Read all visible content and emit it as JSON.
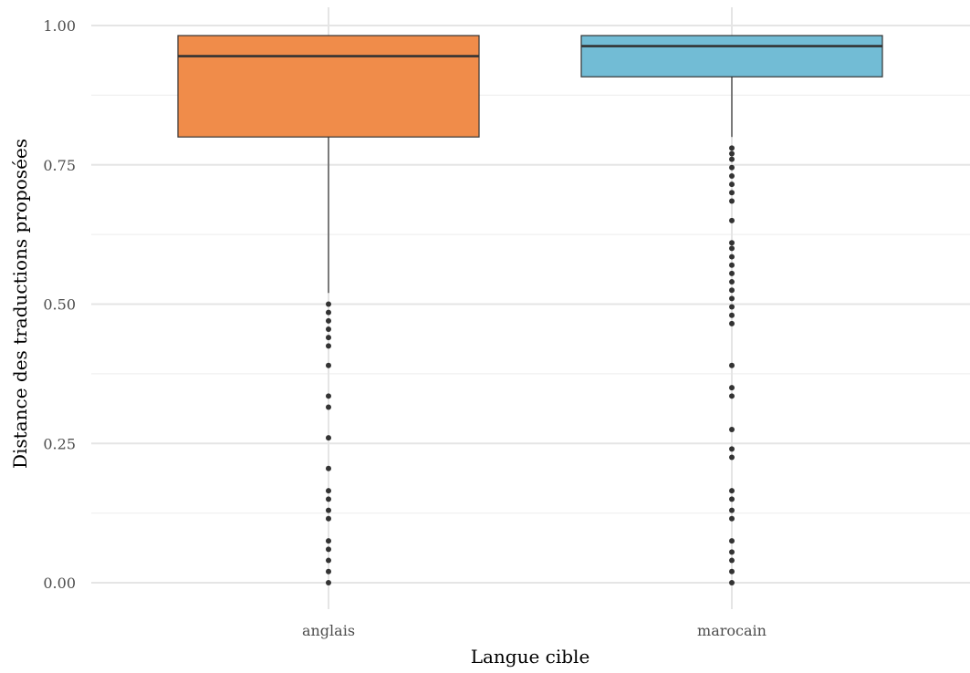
{
  "chart_data": {
    "type": "boxplot",
    "title": "",
    "xlabel": "Langue cible",
    "ylabel": "Distance des traductions proposées",
    "ylim": [
      -0.05,
      1.03
    ],
    "yticks": [
      0.0,
      0.25,
      0.5,
      0.75,
      1.0
    ],
    "ytick_labels": [
      "0.00",
      "0.25",
      "0.50",
      "0.75",
      "1.00"
    ],
    "grid": true,
    "legend": "none",
    "categories": [
      "anglais",
      "marocain"
    ],
    "boxes": [
      {
        "category": "anglais",
        "color": "#f08c4a",
        "q1": 0.8,
        "median": 0.945,
        "q3": 0.982,
        "whisker_low": 0.52,
        "whisker_high": 0.982,
        "outliers": [
          0.5,
          0.485,
          0.47,
          0.455,
          0.44,
          0.425,
          0.39,
          0.335,
          0.315,
          0.26,
          0.205,
          0.165,
          0.15,
          0.13,
          0.115,
          0.075,
          0.06,
          0.04,
          0.02,
          0.0
        ]
      },
      {
        "category": "marocain",
        "color": "#72bcd5",
        "q1": 0.908,
        "median": 0.963,
        "q3": 0.982,
        "whisker_low": 0.8,
        "whisker_high": 0.982,
        "outliers": [
          0.78,
          0.77,
          0.76,
          0.745,
          0.73,
          0.715,
          0.7,
          0.685,
          0.65,
          0.61,
          0.6,
          0.585,
          0.57,
          0.555,
          0.54,
          0.525,
          0.51,
          0.495,
          0.48,
          0.465,
          0.39,
          0.35,
          0.335,
          0.275,
          0.24,
          0.225,
          0.165,
          0.15,
          0.13,
          0.115,
          0.075,
          0.055,
          0.04,
          0.02,
          0.0
        ]
      }
    ]
  }
}
